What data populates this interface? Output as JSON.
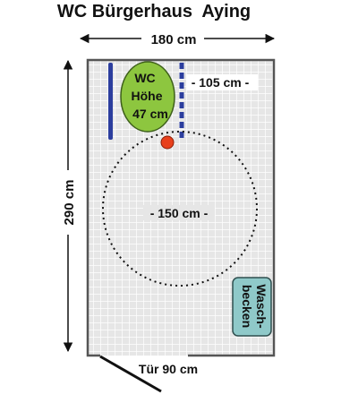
{
  "title": "WC Bürgerhaus  Aying",
  "dimensions": {
    "width_label": "180 cm",
    "height_label": "290 cm",
    "door_label": "Tür 90 cm"
  },
  "toilet": {
    "line1": "WC",
    "line2": "Höhe",
    "line3": "47 cm",
    "clearance_label": "- 105 cm -"
  },
  "turning_circle": {
    "label": "- 150 cm -"
  },
  "sink": {
    "line1": "Wasch-",
    "line2": "becken"
  },
  "colors": {
    "floor_fill": "#e6e6e6",
    "grid_line": "#ffffff",
    "wall": "#555555",
    "toilet": "#8dc63f",
    "grab_bar": "#2c3e9e",
    "sink": "#8fc9c9",
    "marker_dot": "#e8401c"
  },
  "icons": [
    "toilet-icon",
    "sink-icon",
    "grab-bar-icon",
    "door-icon",
    "marker-dot-icon"
  ]
}
